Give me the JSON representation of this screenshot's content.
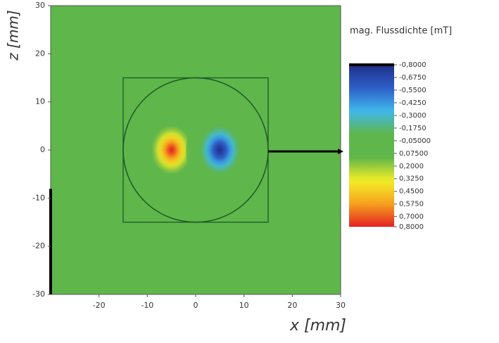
{
  "chart_data": {
    "type": "heatmap",
    "x_label": "x [mm]",
    "y_label": "z [mm]",
    "colorbar_title": "mag. Flussdichte [mT]",
    "xlim": [
      -30,
      30
    ],
    "ylim": [
      -30,
      30
    ],
    "xticks": [
      -20,
      -10,
      0,
      10,
      20,
      30
    ],
    "yticks": [
      -30,
      -20,
      -10,
      0,
      10,
      20,
      30
    ],
    "clim": [
      -0.8,
      0.8
    ],
    "cticks": [
      {
        "value": -0.8,
        "label": "-0,8000"
      },
      {
        "value": -0.675,
        "label": "-0,6750"
      },
      {
        "value": -0.55,
        "label": "-0,5500"
      },
      {
        "value": -0.425,
        "label": "-0,4250"
      },
      {
        "value": -0.3,
        "label": "-0,3000"
      },
      {
        "value": -0.175,
        "label": "-0,1750"
      },
      {
        "value": -0.05,
        "label": "-0,05000"
      },
      {
        "value": 0.075,
        "label": "0,07500"
      },
      {
        "value": 0.2,
        "label": "0,2000"
      },
      {
        "value": 0.325,
        "label": "0,3250"
      },
      {
        "value": 0.45,
        "label": "0,4500"
      },
      {
        "value": 0.575,
        "label": "0,5750"
      },
      {
        "value": 0.7,
        "label": "0,7000"
      },
      {
        "value": 0.8,
        "label": "0,8000"
      }
    ],
    "colormap": [
      "#1f2f8a",
      "#2e5fc8",
      "#3fb8ec",
      "#5fb64a",
      "#5fb64a",
      "#f2ee28",
      "#f6a21e",
      "#e42121"
    ],
    "peaks": [
      {
        "x": -5,
        "y": 0,
        "value": 0.8
      },
      {
        "x": 5,
        "y": 0,
        "value": -0.8
      }
    ],
    "outlines": [
      {
        "shape": "rect",
        "x": [
          -15,
          15
        ],
        "y": [
          -15,
          15
        ]
      },
      {
        "shape": "circle",
        "x": 0,
        "y": 0,
        "r": 15
      }
    ]
  }
}
